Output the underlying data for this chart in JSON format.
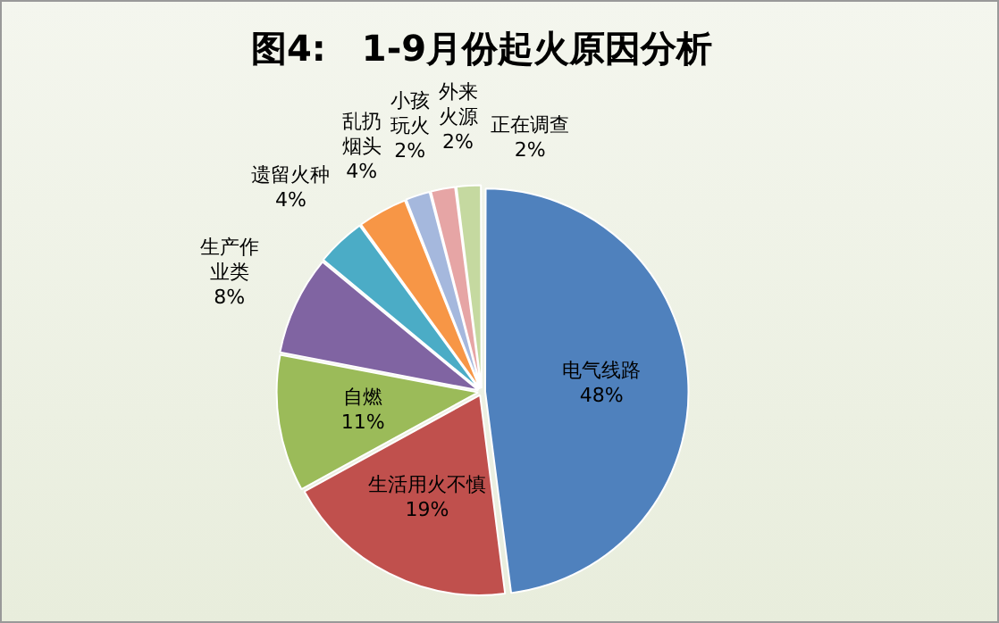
{
  "chart_data": {
    "type": "pie",
    "title": "图4:　1-9月份起火原因分析",
    "categories": [
      "电气线路",
      "生活用火不慎",
      "自燃",
      "生产作业类",
      "遗留火种",
      "乱扔烟头",
      "小孩玩火",
      "外来火源",
      "正在调查"
    ],
    "values": [
      48,
      19,
      11,
      8,
      4,
      4,
      2,
      2,
      2
    ],
    "value_labels": [
      "48%",
      "19%",
      "11%",
      "8%",
      "4%",
      "4%",
      "2%",
      "2%",
      "2%"
    ],
    "colors": [
      "#4f81bd",
      "#c0504d",
      "#9bbb59",
      "#8064a2",
      "#4bacc6",
      "#f79646",
      "#a5b8dd",
      "#e6a5a5",
      "#c5d9a0"
    ],
    "legend": false
  }
}
